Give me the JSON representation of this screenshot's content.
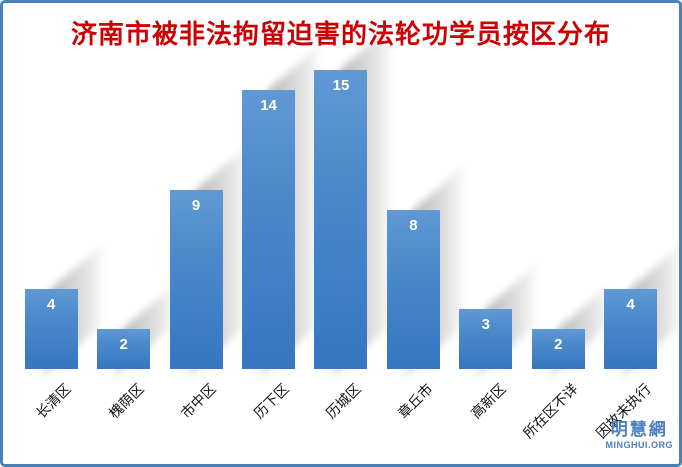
{
  "chart_data": {
    "type": "bar",
    "title": "济南市被非法拘留迫害的法轮功学员按区分布",
    "categories": [
      "长清区",
      "槐荫区",
      "市中区",
      "历下区",
      "历城区",
      "章丘市",
      "高新区",
      "所在区不详",
      "因故未执行"
    ],
    "values": [
      4,
      2,
      9,
      14,
      15,
      8,
      3,
      2,
      4
    ],
    "xlabel": "",
    "ylabel": "",
    "ylim": [
      0,
      15
    ],
    "grid": "off",
    "legend": "none",
    "data_labels": "inside-end",
    "x_label_rotation_deg": -45,
    "colors": {
      "bar": "#4586c7",
      "bar_gradient_top": "#6099d5",
      "bar_gradient_bottom": "#3577c0",
      "data_label": "#ffffff",
      "title": "#cc0000",
      "axis_label": "#111111",
      "shadow": "#9a9a9a",
      "frame_border": "#4a82b8",
      "background": "#ffffff"
    }
  },
  "watermark": {
    "name": "明慧網",
    "domain": "MINGHUI.ORG",
    "color": "#4b7fbe"
  }
}
